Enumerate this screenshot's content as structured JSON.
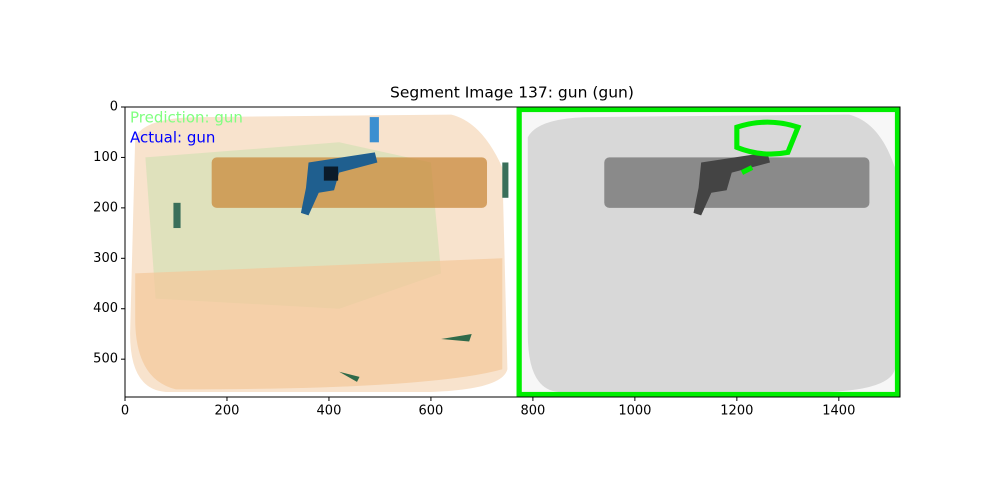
{
  "chart_data": {
    "type": "image",
    "title": "Segment Image 137: gun (gun)",
    "annotations": [
      {
        "text": "Prediction: gun",
        "color": "#80ff80"
      },
      {
        "text": "Actual: gun",
        "color": "#0000ff"
      }
    ],
    "xlim": [
      0,
      1520
    ],
    "ylim": [
      575,
      0
    ],
    "xticks": [
      0,
      200,
      400,
      600,
      800,
      1000,
      1200,
      1400
    ],
    "yticks": [
      0,
      100,
      200,
      300,
      400,
      500
    ]
  }
}
